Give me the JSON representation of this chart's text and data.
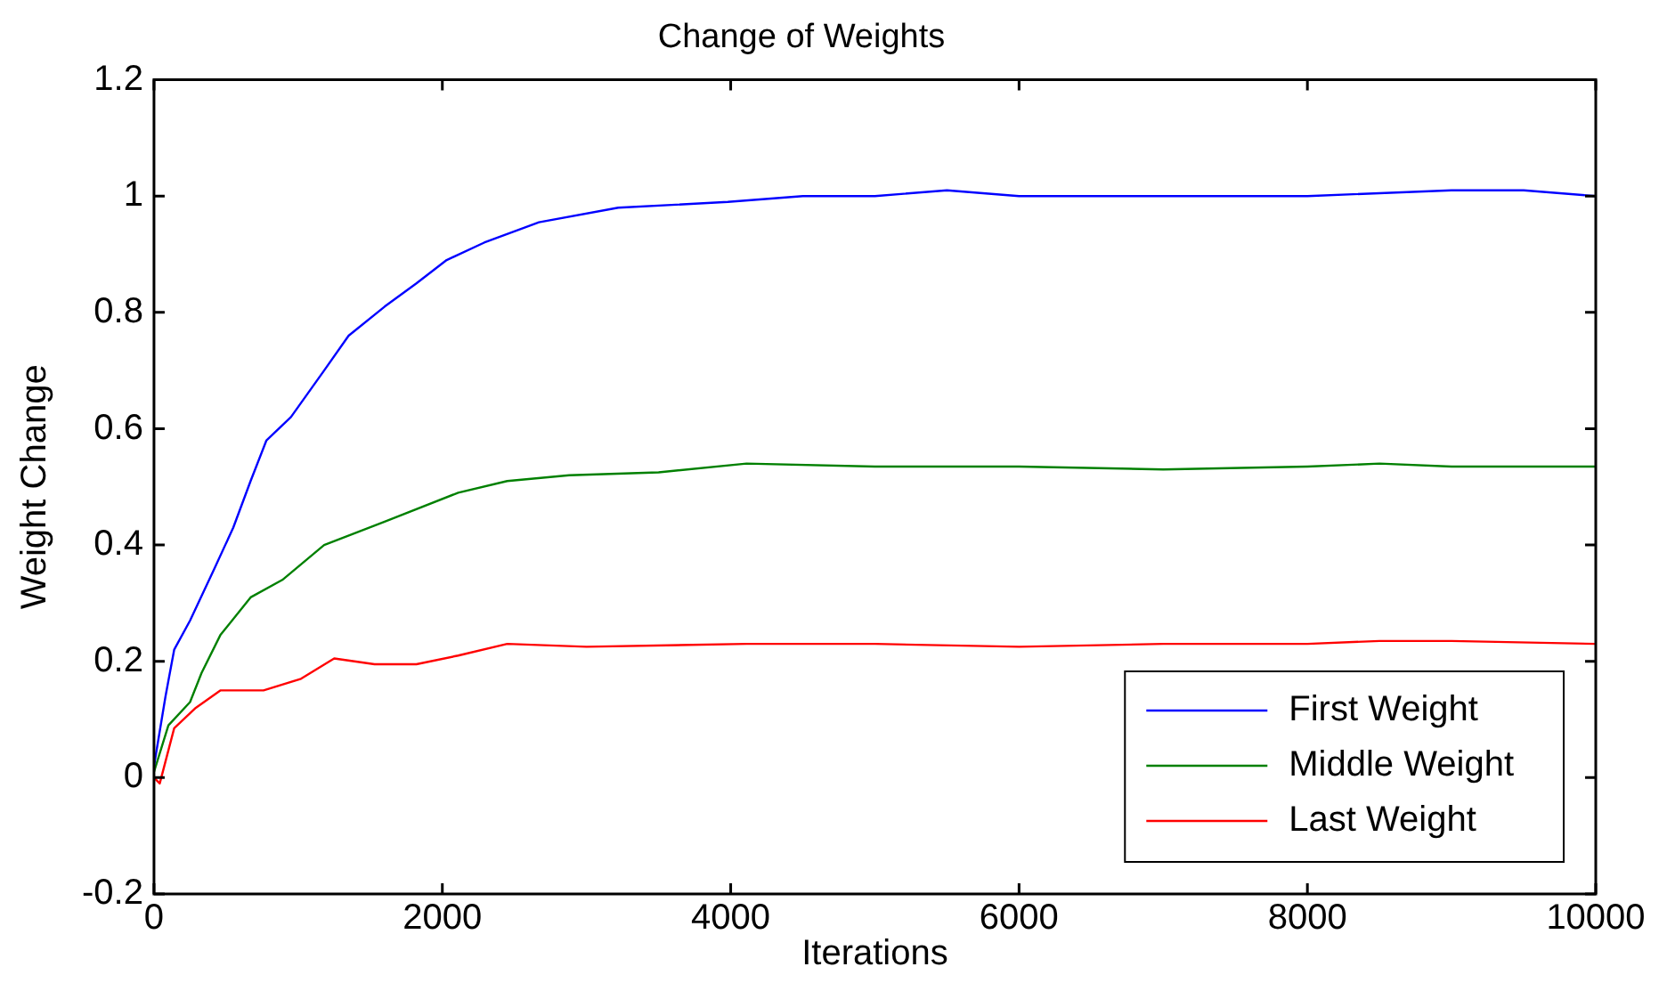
{
  "chart_data": {
    "type": "line",
    "title": "Change of Weights",
    "xlabel": "Iterations",
    "ylabel": "Weight Change",
    "xlim": [
      0,
      10000
    ],
    "xticks": [
      0,
      2000,
      4000,
      6000,
      8000,
      10000
    ],
    "ylim": [
      -0.2,
      1.2
    ],
    "yticks": [
      -0.2,
      0,
      0.2,
      0.4,
      0.6,
      0.8,
      1,
      1.2
    ],
    "grid": false,
    "legend": "bottom right",
    "marker": "none",
    "line_style": "solid",
    "series": [
      {
        "name": "First Weight",
        "color": "#0000ff",
        "x": [
          0,
          80,
          140,
          250,
          420,
          550,
          670,
          780,
          950,
          1180,
          1350,
          1600,
          1820,
          2030,
          2290,
          2670,
          3220,
          3980,
          4500,
          5000,
          5500,
          6000,
          7000,
          8000,
          9000,
          9500,
          10000
        ],
        "values": [
          0.02,
          0.14,
          0.22,
          0.27,
          0.36,
          0.43,
          0.51,
          0.58,
          0.62,
          0.7,
          0.76,
          0.81,
          0.85,
          0.89,
          0.92,
          0.955,
          0.98,
          0.99,
          1.0,
          1.0,
          1.01,
          1.0,
          1.0,
          1.0,
          1.01,
          1.01,
          1.0
        ]
      },
      {
        "name": "Middle Weight",
        "color": "#008000",
        "x": [
          0,
          100,
          250,
          330,
          460,
          670,
          890,
          1180,
          1600,
          2110,
          2450,
          2880,
          3500,
          4110,
          5000,
          6000,
          7000,
          8000,
          8500,
          9000,
          10000
        ],
        "values": [
          0.01,
          0.09,
          0.13,
          0.18,
          0.245,
          0.31,
          0.34,
          0.4,
          0.44,
          0.49,
          0.51,
          0.52,
          0.525,
          0.54,
          0.535,
          0.535,
          0.53,
          0.535,
          0.54,
          0.535,
          0.535
        ]
      },
      {
        "name": "Last Weight",
        "color": "#ff0000",
        "x": [
          0,
          40,
          140,
          290,
          460,
          760,
          1020,
          1250,
          1530,
          1820,
          2110,
          2450,
          3000,
          4110,
          5000,
          6000,
          7000,
          8000,
          8500,
          9000,
          10000
        ],
        "values": [
          0,
          -0.01,
          0.085,
          0.12,
          0.15,
          0.15,
          0.17,
          0.205,
          0.195,
          0.195,
          0.21,
          0.23,
          0.225,
          0.23,
          0.23,
          0.225,
          0.23,
          0.23,
          0.235,
          0.235,
          0.23
        ]
      }
    ]
  }
}
